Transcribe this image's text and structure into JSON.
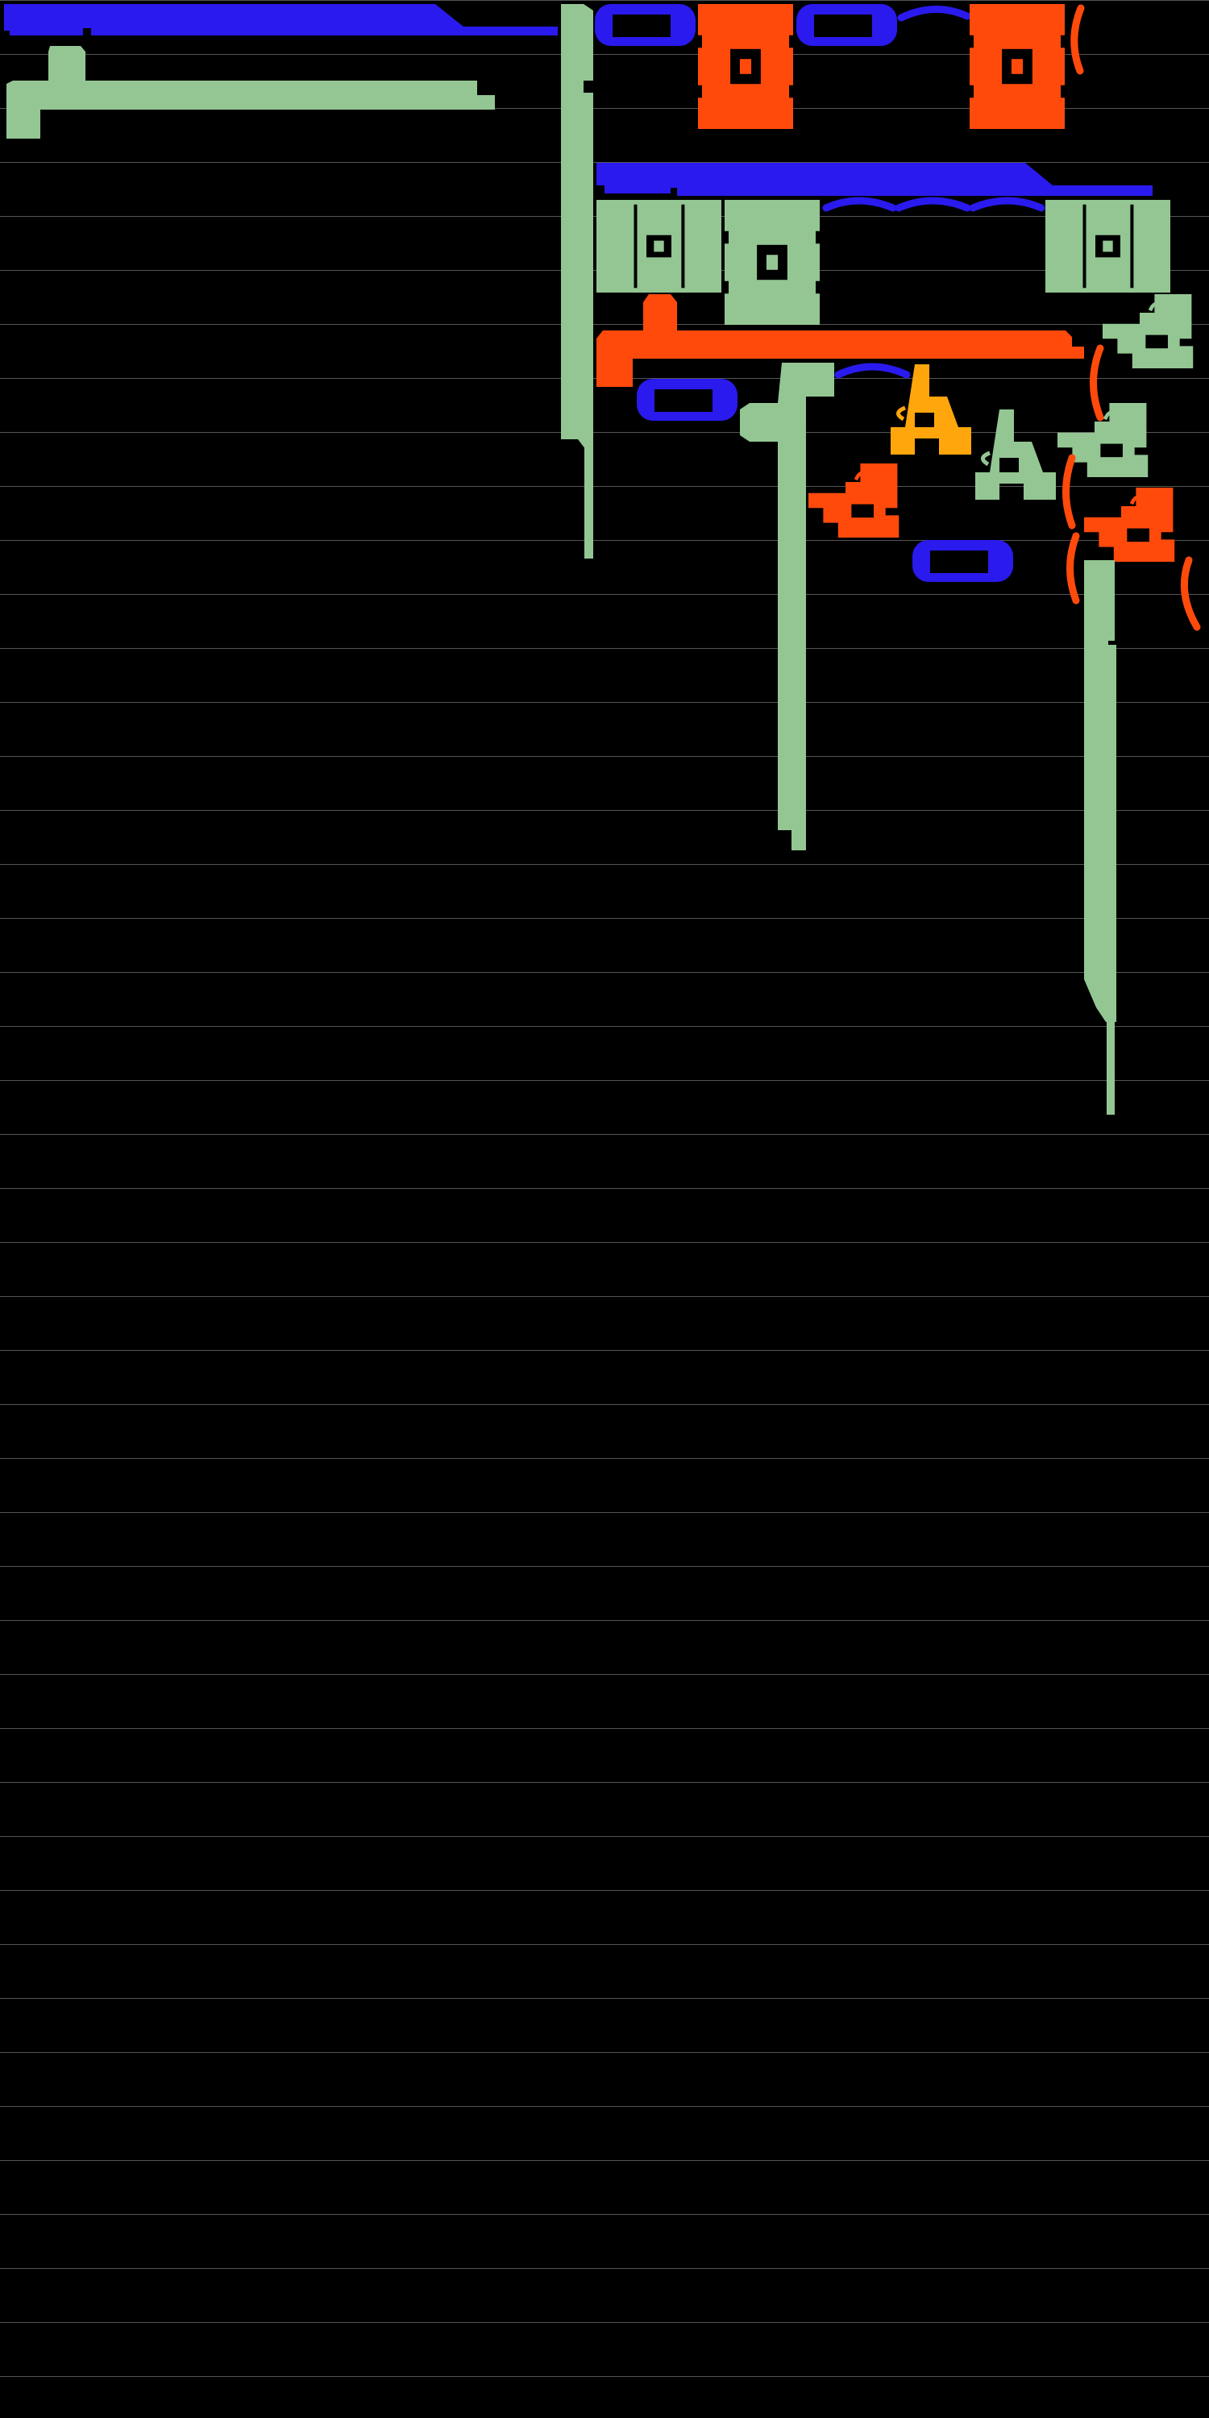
{
  "palette": {
    "background": "#000000",
    "gridline": "#555555",
    "green": "#93C693",
    "blue": "#2A1AEE",
    "orange": "#FF4A0C",
    "amber": "#FFA60C"
  },
  "icons": [
    "gridline",
    "bar-shape",
    "capsule-icon",
    "block-icon",
    "grid-block-icon",
    "arc-icon",
    "paren-icon",
    "tee-shape",
    "glyph-icon"
  ]
}
